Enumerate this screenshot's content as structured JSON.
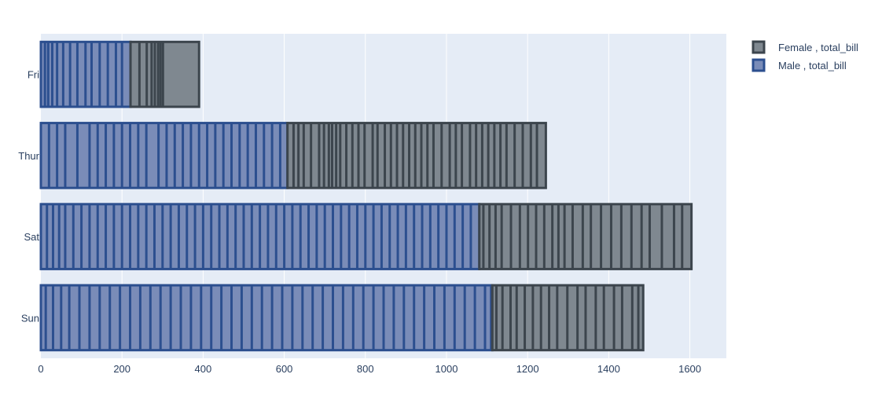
{
  "chart_data": {
    "type": "bar",
    "orientation": "horizontal",
    "barmode": "stack",
    "categories": [
      "Fri",
      "Thur",
      "Sat",
      "Sun"
    ],
    "xlim": [
      0,
      1690
    ],
    "x_ticks": [
      0,
      200,
      400,
      600,
      800,
      1000,
      1200,
      1400,
      1600
    ],
    "grid": true,
    "legend_position": "top-right",
    "stack_order": [
      "Male , total_bill",
      "Female , total_bill"
    ],
    "series": [
      {
        "name": "Female , total_bill",
        "color": "#7f8890",
        "line_color": "#3c454d",
        "segment_boundaries": {
          "Fri": [
            22,
            40,
            52,
            60,
            68,
            74,
            80
          ],
          "Thur": [
            15,
            27,
            40,
            58,
            78,
            90,
            102,
            110,
            120,
            130,
            145,
            160,
            175,
            190,
            210,
            222,
            240,
            255,
            270,
            285,
            300,
            315,
            330,
            345,
            360,
            380,
            400,
            415,
            430,
            450,
            465,
            480,
            495,
            510,
            525,
            540,
            560,
            580,
            600,
            615
          ],
          "Sat": [
            10,
            25,
            40,
            55,
            78,
            100,
            120,
            140,
            160,
            180,
            195,
            210,
            230,
            255,
            275,
            300,
            325,
            350,
            375,
            400,
            420,
            450,
            480,
            500
          ],
          "Sun": [
            10,
            25,
            45,
            60,
            80,
            100,
            120,
            140,
            160,
            185,
            210,
            230,
            255,
            275,
            300,
            320,
            345,
            360
          ]
        },
        "values": [
          169.0,
          637.0,
          523.0,
          372.0
        ]
      },
      {
        "name": "Male , total_bill",
        "color": "#7a8cb8",
        "line_color": "#2c4f8f",
        "segment_boundaries": {
          "Fri": [
            10,
            18,
            28,
            40,
            55,
            72,
            90,
            110,
            125,
            145,
            165,
            185,
            200
          ],
          "Thur": [
            20,
            40,
            60,
            90,
            120,
            140,
            160,
            180,
            200,
            220,
            240,
            260,
            290,
            310,
            330,
            350,
            370,
            390,
            410,
            430,
            450,
            470,
            490,
            510,
            530,
            550,
            570,
            590
          ],
          "Sat": [
            15,
            30,
            45,
            60,
            80,
            100,
            120,
            140,
            160,
            180,
            200,
            220,
            240,
            260,
            280,
            300,
            320,
            340,
            360,
            380,
            400,
            420,
            440,
            460,
            480,
            500,
            520,
            540,
            560,
            580,
            600,
            620,
            640,
            660,
            680,
            700,
            720,
            740,
            760,
            780,
            800,
            820,
            840,
            860,
            880,
            900,
            920,
            940,
            960,
            980,
            1000,
            1020,
            1040,
            1060
          ],
          "Sun": [
            12,
            30,
            50,
            70,
            95,
            120,
            145,
            170,
            195,
            220,
            245,
            270,
            295,
            320,
            345,
            370,
            395,
            420,
            445,
            470,
            495,
            520,
            545,
            570,
            595,
            620,
            645,
            670,
            695,
            720,
            745,
            770,
            795,
            820,
            845,
            870,
            895,
            920,
            945,
            970,
            995,
            1020,
            1045,
            1070,
            1095,
            1110
          ]
        },
        "values": [
          221.0,
          608.0,
          1081.0,
          1113.0
        ]
      }
    ]
  }
}
